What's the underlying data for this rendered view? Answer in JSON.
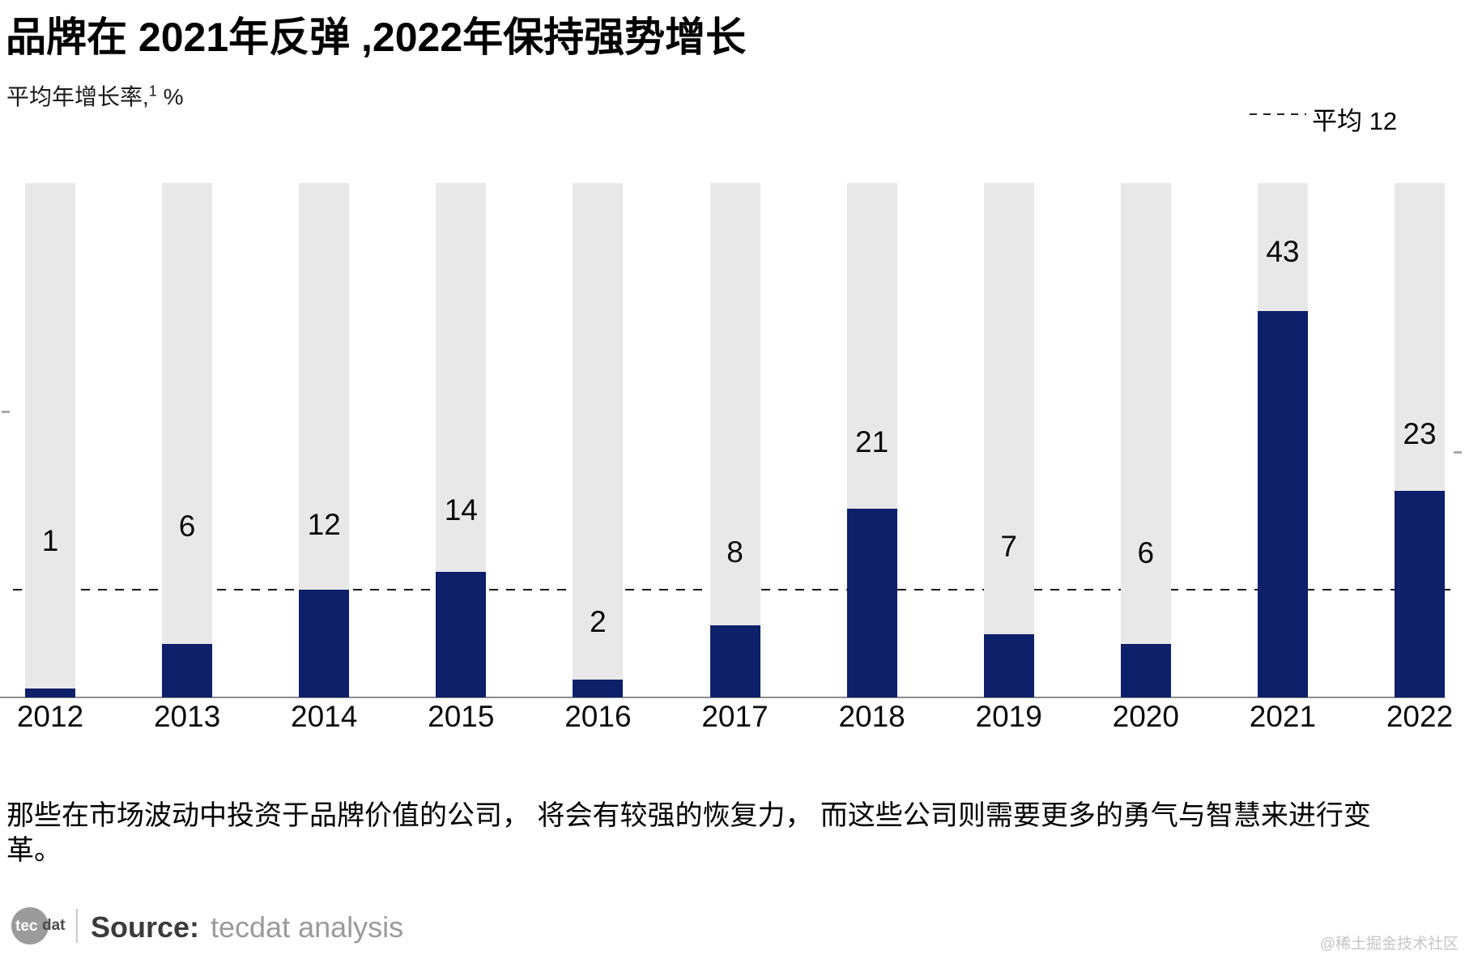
{
  "title": "品牌在 2021年反弹 ,2022年保持强势增长",
  "subtitle": {
    "base": "平均年增长率,",
    "superscript": "1",
    "suffix": " %"
  },
  "legend": {
    "average_label": "平均 12"
  },
  "chart_data": {
    "type": "bar",
    "title": "品牌在 2021年反弹 ,2022年保持强势增长",
    "ylabel": "平均年增长率, %",
    "categories": [
      "2012",
      "2013",
      "2014",
      "2015",
      "2016",
      "2017",
      "2018",
      "2019",
      "2020",
      "2021",
      "2022"
    ],
    "values": [
      1,
      6,
      12,
      14,
      2,
      8,
      21,
      7,
      6,
      43,
      23
    ],
    "average": 12,
    "average_label": "平均 12",
    "ylim": [
      0,
      57.3
    ],
    "grid": false,
    "legend_position": "top-right",
    "bar_color": "#0d2069",
    "track_color": "#e8e8e8",
    "label_y_centers": [
      668,
      650,
      648,
      630,
      768,
      682,
      546,
      675,
      683,
      311,
      536
    ]
  },
  "footnote": "那些在市场波动中投资于品牌价值的公司， 将会有较强的恢复力， 而这些公司则需要更多的勇气与智慧来进行变革。",
  "source": {
    "logo_tec": "tec",
    "logo_dat": "dat",
    "label": "Source:",
    "text": "tecdat analysis"
  },
  "watermark": "@稀土掘金技术社区"
}
